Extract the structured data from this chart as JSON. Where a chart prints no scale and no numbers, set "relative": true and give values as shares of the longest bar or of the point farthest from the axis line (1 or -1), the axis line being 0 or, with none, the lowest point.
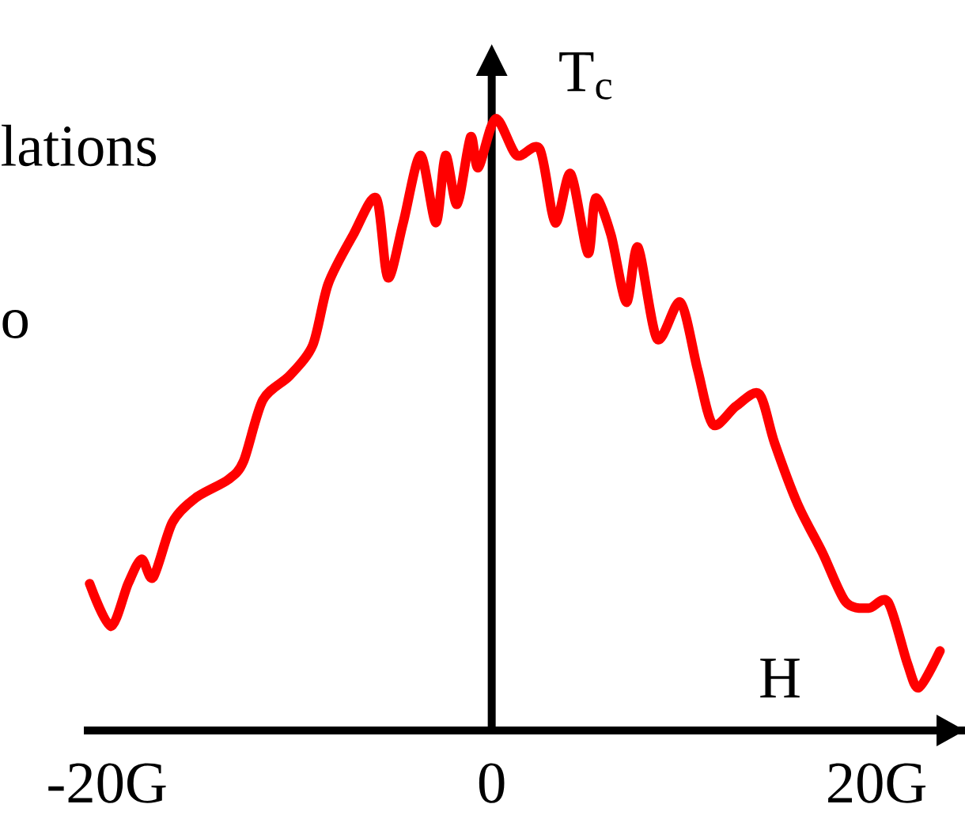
{
  "chart_data": {
    "type": "line",
    "relative": true,
    "xlabel": "H",
    "ylabel": "T$_{c}$",
    "annotations": [
      "lations",
      "o"
    ],
    "xlim": [
      -21.2,
      24.6
    ],
    "xticks": [
      {
        "value": -20,
        "label": "-20G"
      },
      0,
      {
        "value": 20,
        "label": "20G"
      }
    ],
    "series": [
      {
        "color": "#ff0000",
        "x": [
          -20.9,
          -19.8,
          -18.9,
          -18.2,
          -17.6,
          -16.6,
          -15.4,
          -13.7,
          -12.9,
          -11.9,
          -10.5,
          -9.3,
          -8.5,
          -7.2,
          -6.0,
          -5.4,
          -4.6,
          -3.7,
          -2.9,
          -2.4,
          -1.8,
          -1.1,
          -0.7,
          0.2,
          1.3,
          2.5,
          3.3,
          4.1,
          5.0,
          5.4,
          6.2,
          7.0,
          7.6,
          8.6,
          9.8,
          10.7,
          11.5,
          12.7,
          13.9,
          14.7,
          15.9,
          17.2,
          18.4,
          19.6,
          20.6,
          21.6,
          22.2,
          23.3
        ],
        "values": [
          0.24,
          0.17,
          0.24,
          0.28,
          0.25,
          0.34,
          0.38,
          0.41,
          0.44,
          0.54,
          0.58,
          0.63,
          0.73,
          0.81,
          0.87,
          0.74,
          0.83,
          0.94,
          0.83,
          0.94,
          0.86,
          0.97,
          0.92,
          1,
          0.94,
          0.95,
          0.83,
          0.91,
          0.78,
          0.87,
          0.81,
          0.7,
          0.79,
          0.64,
          0.7,
          0.59,
          0.5,
          0.53,
          0.55,
          0.47,
          0.37,
          0.29,
          0.21,
          0.2,
          0.21,
          0.11,
          0.07,
          0.13
        ]
      }
    ],
    "marker": "none",
    "line_style": "solid"
  }
}
